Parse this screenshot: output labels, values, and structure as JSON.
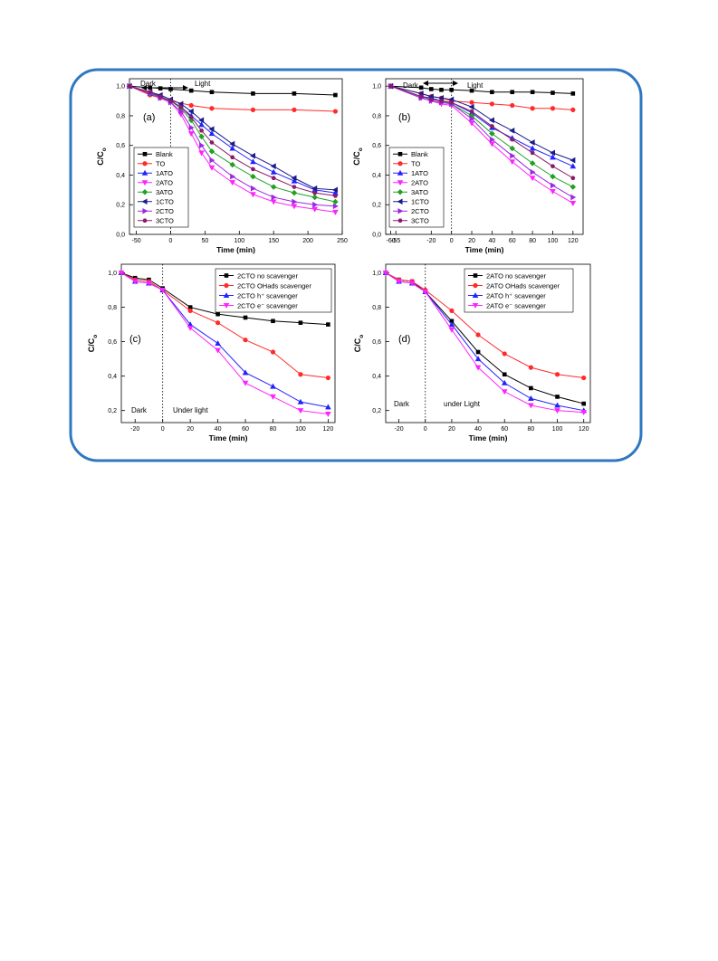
{
  "chart_data": [
    {
      "type": "line",
      "panel_label": "(a)",
      "xlabel": "Time (min)",
      "ylabel": "C/C",
      "ylabel_sub": "o",
      "xlim": [
        -60,
        250
      ],
      "ylim": [
        0.0,
        1.05
      ],
      "xticks": [
        -50,
        0,
        50,
        100,
        150,
        200,
        250
      ],
      "yticks": [
        0.0,
        0.2,
        0.4,
        0.6,
        0.8,
        1.0
      ],
      "xtick_labels": [
        "-50",
        "0",
        "50",
        "100",
        "150",
        "200",
        "250"
      ],
      "ytick_labels": [
        "0,0",
        "0,2",
        "0,4",
        "0,6",
        "0,8",
        "1,0"
      ],
      "dark_label": "Dark",
      "light_label": "Light",
      "legend": "middle-left",
      "series": [
        {
          "name": "Blank",
          "color": "#000000",
          "marker": "square",
          "x": [
            -60,
            -30,
            -15,
            0,
            30,
            60,
            120,
            180,
            240
          ],
          "values": [
            1.0,
            0.99,
            0.985,
            0.98,
            0.97,
            0.96,
            0.95,
            0.95,
            0.94
          ]
        },
        {
          "name": "TO",
          "color": "#ff2a2a",
          "marker": "circle",
          "x": [
            -60,
            -30,
            -15,
            0,
            30,
            60,
            120,
            180,
            240
          ],
          "values": [
            1.0,
            0.94,
            0.92,
            0.9,
            0.87,
            0.85,
            0.84,
            0.84,
            0.83
          ]
        },
        {
          "name": "1ATO",
          "color": "#2222ff",
          "marker": "triangle-up",
          "x": [
            -60,
            -30,
            -15,
            0,
            15,
            30,
            45,
            60,
            90,
            120,
            150,
            180,
            210,
            240
          ],
          "values": [
            1.0,
            0.95,
            0.93,
            0.9,
            0.86,
            0.8,
            0.74,
            0.68,
            0.58,
            0.49,
            0.42,
            0.36,
            0.3,
            0.28
          ]
        },
        {
          "name": "2ATO",
          "color": "#ff22ff",
          "marker": "triangle-down",
          "x": [
            -60,
            -30,
            -15,
            0,
            15,
            30,
            45,
            60,
            90,
            120,
            150,
            180,
            210,
            240
          ],
          "values": [
            1.0,
            0.95,
            0.92,
            0.89,
            0.81,
            0.68,
            0.55,
            0.45,
            0.35,
            0.27,
            0.22,
            0.19,
            0.17,
            0.15
          ]
        },
        {
          "name": "3ATO",
          "color": "#22a022",
          "marker": "diamond",
          "x": [
            -60,
            -30,
            -15,
            0,
            15,
            30,
            45,
            60,
            90,
            120,
            150,
            180,
            210,
            240
          ],
          "values": [
            1.0,
            0.95,
            0.93,
            0.9,
            0.85,
            0.77,
            0.66,
            0.56,
            0.47,
            0.39,
            0.32,
            0.28,
            0.25,
            0.22
          ]
        },
        {
          "name": "1CTO",
          "color": "#1a1a8c",
          "marker": "triangle-left",
          "x": [
            -60,
            -30,
            -15,
            0,
            15,
            30,
            45,
            60,
            90,
            120,
            150,
            180,
            210,
            240
          ],
          "values": [
            1.0,
            0.96,
            0.94,
            0.91,
            0.88,
            0.83,
            0.77,
            0.71,
            0.61,
            0.53,
            0.46,
            0.38,
            0.31,
            0.3
          ]
        },
        {
          "name": "2CTO",
          "color": "#9a2ae0",
          "marker": "triangle-right",
          "x": [
            -60,
            -30,
            -15,
            0,
            15,
            30,
            45,
            60,
            90,
            120,
            150,
            180,
            210,
            240
          ],
          "values": [
            1.0,
            0.95,
            0.92,
            0.89,
            0.83,
            0.72,
            0.6,
            0.5,
            0.39,
            0.31,
            0.25,
            0.22,
            0.2,
            0.19
          ]
        },
        {
          "name": "3CTO",
          "color": "#8a1a6a",
          "marker": "hexagon",
          "x": [
            -60,
            -30,
            -15,
            0,
            15,
            30,
            45,
            60,
            90,
            120,
            150,
            180,
            210,
            240
          ],
          "values": [
            1.0,
            0.96,
            0.93,
            0.9,
            0.86,
            0.79,
            0.7,
            0.62,
            0.52,
            0.44,
            0.38,
            0.32,
            0.28,
            0.26
          ]
        }
      ]
    },
    {
      "type": "line",
      "panel_label": "(b)",
      "xlabel": "Time (min)",
      "ylabel": "C/C",
      "ylabel_sub": "o",
      "xlim": [
        -65,
        130
      ],
      "ylim": [
        0.0,
        1.05
      ],
      "xticks": [
        -60,
        -55,
        -20,
        0,
        20,
        40,
        60,
        80,
        100,
        120
      ],
      "yticks": [
        0.0,
        0.2,
        0.4,
        0.6,
        0.8,
        1.0
      ],
      "xtick_labels": [
        "-60",
        "-55",
        "-20",
        "0",
        "20",
        "40",
        "60",
        "80",
        "100",
        "120"
      ],
      "ytick_labels": [
        "0,0",
        "0,2",
        "0,4",
        "0,6",
        "0,8",
        "1,0"
      ],
      "dark_label": "Dark",
      "light_label": "Light",
      "legend": "middle-left",
      "series": [
        {
          "name": "Blank",
          "color": "#000000",
          "marker": "square",
          "x": [
            -60,
            -30,
            -20,
            -10,
            0,
            20,
            40,
            60,
            80,
            100,
            120
          ],
          "values": [
            1.0,
            0.99,
            0.98,
            0.975,
            0.975,
            0.97,
            0.96,
            0.96,
            0.96,
            0.955,
            0.95
          ]
        },
        {
          "name": "TO",
          "color": "#ff2a2a",
          "marker": "circle",
          "x": [
            -60,
            -30,
            -20,
            -10,
            0,
            20,
            40,
            60,
            80,
            100,
            120
          ],
          "values": [
            1.0,
            0.95,
            0.93,
            0.92,
            0.9,
            0.89,
            0.88,
            0.87,
            0.85,
            0.85,
            0.84
          ]
        },
        {
          "name": "1ATO",
          "color": "#2222ff",
          "marker": "triangle-up",
          "x": [
            -60,
            -30,
            -20,
            -10,
            0,
            20,
            40,
            60,
            80,
            100,
            120
          ],
          "values": [
            1.0,
            0.93,
            0.92,
            0.9,
            0.89,
            0.82,
            0.72,
            0.65,
            0.58,
            0.52,
            0.46
          ]
        },
        {
          "name": "2ATO",
          "color": "#ff22ff",
          "marker": "triangle-down",
          "x": [
            -60,
            -30,
            -20,
            -10,
            0,
            20,
            40,
            60,
            80,
            100,
            120
          ],
          "values": [
            1.0,
            0.92,
            0.9,
            0.88,
            0.87,
            0.75,
            0.61,
            0.49,
            0.38,
            0.29,
            0.21
          ]
        },
        {
          "name": "3ATO",
          "color": "#22a022",
          "marker": "diamond",
          "x": [
            -60,
            -30,
            -20,
            -10,
            0,
            20,
            40,
            60,
            80,
            100,
            120
          ],
          "values": [
            1.0,
            0.93,
            0.91,
            0.9,
            0.88,
            0.8,
            0.68,
            0.58,
            0.48,
            0.39,
            0.32
          ]
        },
        {
          "name": "1CTO",
          "color": "#1a1a8c",
          "marker": "triangle-left",
          "x": [
            -60,
            -30,
            -20,
            -10,
            0,
            20,
            40,
            60,
            80,
            100,
            120
          ],
          "values": [
            1.0,
            0.95,
            0.93,
            0.92,
            0.91,
            0.86,
            0.77,
            0.7,
            0.62,
            0.55,
            0.5
          ]
        },
        {
          "name": "2CTO",
          "color": "#9a2ae0",
          "marker": "triangle-right",
          "x": [
            -60,
            -30,
            -20,
            -10,
            0,
            20,
            40,
            60,
            80,
            100,
            120
          ],
          "values": [
            1.0,
            0.92,
            0.9,
            0.89,
            0.88,
            0.78,
            0.64,
            0.53,
            0.42,
            0.33,
            0.25
          ]
        },
        {
          "name": "3CTO",
          "color": "#8a1a6a",
          "marker": "hexagon",
          "x": [
            -60,
            -30,
            -20,
            -10,
            0,
            20,
            40,
            60,
            80,
            100,
            120
          ],
          "values": [
            1.0,
            0.93,
            0.91,
            0.9,
            0.89,
            0.83,
            0.73,
            0.64,
            0.55,
            0.46,
            0.38
          ]
        }
      ]
    },
    {
      "type": "line",
      "panel_label": "(c)",
      "xlabel": "Time (min)",
      "ylabel": "C/C",
      "ylabel_sub": "o",
      "xlim": [
        -30,
        125
      ],
      "ylim": [
        0.13,
        1.05
      ],
      "xticks": [
        -20,
        0,
        20,
        40,
        60,
        80,
        100,
        120
      ],
      "yticks": [
        0.2,
        0.4,
        0.6,
        0.8,
        1.0
      ],
      "xtick_labels": [
        "-20",
        "0",
        "20",
        "40",
        "60",
        "80",
        "100",
        "120"
      ],
      "ytick_labels": [
        "0,2",
        "0,4",
        "0,6",
        "0,8",
        "1,0"
      ],
      "dark_label": "Dark",
      "light_label": "Under light",
      "legend": "top-right",
      "series": [
        {
          "name": "2CTO no scavenger",
          "color": "#000000",
          "marker": "square",
          "x": [
            -30,
            -20,
            -10,
            0,
            20,
            40,
            60,
            80,
            100,
            120
          ],
          "values": [
            1.0,
            0.97,
            0.96,
            0.91,
            0.8,
            0.76,
            0.74,
            0.72,
            0.71,
            0.7
          ]
        },
        {
          "name": "2CTO OHads scavenger",
          "color": "#ff2a2a",
          "marker": "circle",
          "x": [
            -30,
            -20,
            -10,
            0,
            20,
            40,
            60,
            80,
            100,
            120
          ],
          "values": [
            1.0,
            0.96,
            0.95,
            0.9,
            0.78,
            0.71,
            0.61,
            0.54,
            0.41,
            0.39
          ]
        },
        {
          "name": "2CTO h⁺ scavenger",
          "color": "#2222ff",
          "marker": "triangle-up",
          "x": [
            -30,
            -20,
            -10,
            0,
            20,
            40,
            60,
            80,
            100,
            120
          ],
          "values": [
            1.0,
            0.95,
            0.94,
            0.9,
            0.7,
            0.59,
            0.42,
            0.34,
            0.25,
            0.22
          ]
        },
        {
          "name": "2CTO e⁻ scavenger",
          "color": "#ff22ff",
          "marker": "triangle-down",
          "x": [
            -30,
            -20,
            -10,
            0,
            20,
            40,
            60,
            80,
            100,
            120
          ],
          "values": [
            1.0,
            0.95,
            0.94,
            0.9,
            0.68,
            0.55,
            0.36,
            0.28,
            0.2,
            0.18
          ]
        }
      ]
    },
    {
      "type": "line",
      "panel_label": "(d)",
      "xlabel": "Time (min)",
      "ylabel": "C/C",
      "ylabel_sub": "o",
      "xlim": [
        -30,
        125
      ],
      "ylim": [
        0.13,
        1.05
      ],
      "xticks": [
        -20,
        0,
        20,
        40,
        60,
        80,
        100,
        120
      ],
      "yticks": [
        0.2,
        0.4,
        0.6,
        0.8,
        1.0
      ],
      "xtick_labels": [
        "-20",
        "0",
        "20",
        "40",
        "60",
        "80",
        "100",
        "120"
      ],
      "ytick_labels": [
        "0,2",
        "0,4",
        "0,6",
        "0,8",
        "1,0"
      ],
      "dark_label": "Dark",
      "light_label": "under Light",
      "legend": "top-right",
      "series": [
        {
          "name": "2ATO no scavenger",
          "color": "#000000",
          "marker": "square",
          "x": [
            -30,
            -20,
            -10,
            0,
            20,
            40,
            60,
            80,
            100,
            120
          ],
          "values": [
            1.0,
            0.96,
            0.95,
            0.89,
            0.72,
            0.54,
            0.41,
            0.33,
            0.28,
            0.24
          ]
        },
        {
          "name": "2ATO OHads scavenger",
          "color": "#ff2a2a",
          "marker": "circle",
          "x": [
            -30,
            -20,
            -10,
            0,
            20,
            40,
            60,
            80,
            100,
            120
          ],
          "values": [
            1.0,
            0.96,
            0.95,
            0.9,
            0.78,
            0.64,
            0.53,
            0.45,
            0.41,
            0.39
          ]
        },
        {
          "name": "2ATO h⁺ scavenger",
          "color": "#2222ff",
          "marker": "triangle-up",
          "x": [
            -30,
            -20,
            -10,
            0,
            20,
            40,
            60,
            80,
            100,
            120
          ],
          "values": [
            1.0,
            0.95,
            0.94,
            0.89,
            0.7,
            0.5,
            0.36,
            0.27,
            0.23,
            0.2
          ]
        },
        {
          "name": "2ATO e⁻ scavenger",
          "color": "#ff22ff",
          "marker": "triangle-down",
          "x": [
            -30,
            -20,
            -10,
            0,
            20,
            40,
            60,
            80,
            100,
            120
          ],
          "values": [
            1.0,
            0.95,
            0.94,
            0.89,
            0.67,
            0.45,
            0.31,
            0.23,
            0.2,
            0.19
          ]
        }
      ]
    }
  ]
}
